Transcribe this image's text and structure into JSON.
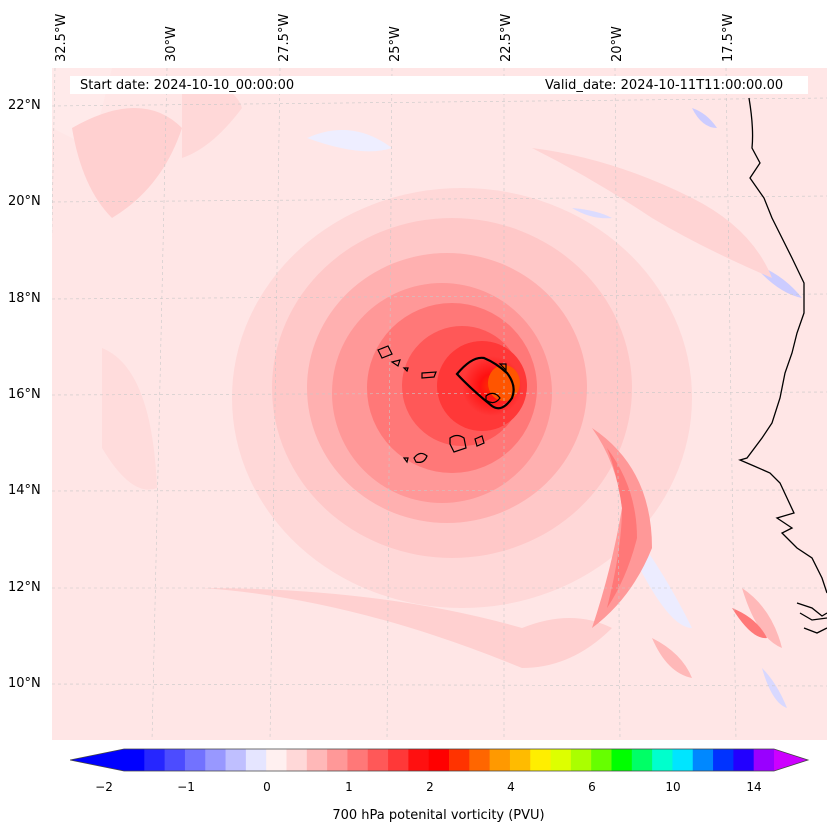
{
  "map": {
    "start_date": "Start date: 2024-10-10_00:00:00",
    "valid_date": "Valid_date: 2024-10-11T11:00:00.00",
    "lon_labels": [
      "32.5°W",
      "30°W",
      "27.5°W",
      "25°W",
      "22.5°W",
      "20°W",
      "17.5°W"
    ],
    "lat_labels": [
      "22°N",
      "20°N",
      "18°N",
      "16°N",
      "14°N",
      "12°N",
      "10°N"
    ],
    "coastline_color": "#000000",
    "grid_color": "#c8c8c8"
  },
  "colorbar": {
    "title": "700 hPa potenital vorticity (PVU)",
    "ticks": [
      "−2",
      "−1",
      "0",
      "1",
      "2",
      "4",
      "6",
      "10",
      "14"
    ],
    "colors": [
      "#0000ff",
      "#2626ff",
      "#4c4cff",
      "#7272ff",
      "#9898ff",
      "#bfbfff",
      "#e5e5ff",
      "#fff0f0",
      "#ffd8d8",
      "#ffb8b8",
      "#ff9898",
      "#ff7878",
      "#ff5858",
      "#ff3838",
      "#ff1010",
      "#ff0000",
      "#ff3300",
      "#ff6600",
      "#ff9900",
      "#ffbb00",
      "#ffee00",
      "#ddff00",
      "#aaff00",
      "#66ff00",
      "#00ff00",
      "#00ff66",
      "#00ffcc",
      "#00e5ff",
      "#0088ff",
      "#0033ff",
      "#2200ff",
      "#9900ff"
    ],
    "extend_min_color": "#0000ff",
    "extend_max_color": "#cc00ff"
  }
}
